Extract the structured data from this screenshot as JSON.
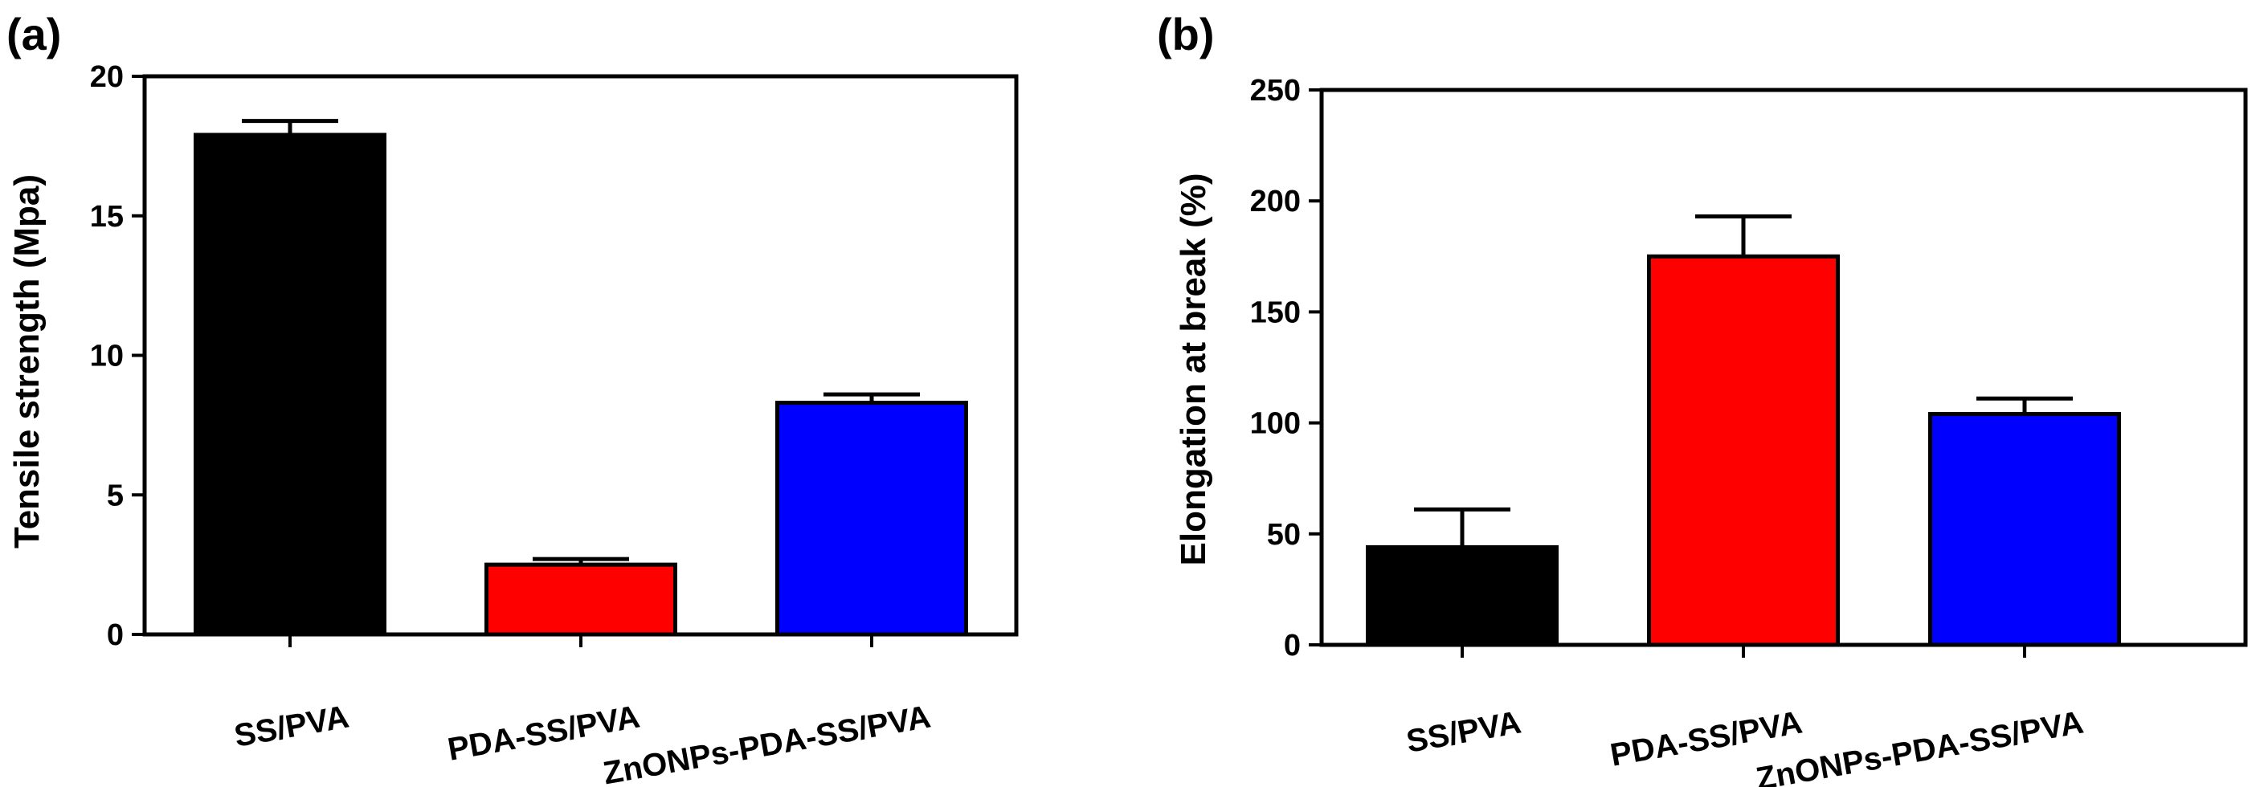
{
  "chart_data": [
    {
      "panel_label": "(a)",
      "type": "bar",
      "categories": [
        "SS/PVA",
        "PDA-SS/PVA",
        "ZnONPs-PDA-SS/PVA"
      ],
      "values": [
        17.9,
        2.5,
        8.3
      ],
      "errors": [
        0.5,
        0.2,
        0.3
      ],
      "colors": [
        "#000000",
        "#ff0000",
        "#0000ff"
      ],
      "ylabel": "Tensile strength (Mpa)",
      "xlabel": "",
      "ylim": [
        0,
        20
      ],
      "yticks": [
        "0",
        "5",
        "10",
        "15",
        "20"
      ],
      "error_bars": "upper"
    },
    {
      "panel_label": "(b)",
      "type": "bar",
      "categories": [
        "SS/PVA",
        "PDA-SS/PVA",
        "ZnONPs-PDA-SS/PVA"
      ],
      "values": [
        44,
        175,
        104
      ],
      "errors": [
        17,
        18,
        7
      ],
      "colors": [
        "#000000",
        "#ff0000",
        "#0000ff"
      ],
      "ylabel": "Elongation at break (%)",
      "xlabel": "",
      "ylim": [
        0,
        250
      ],
      "yticks": [
        "0",
        "50",
        "100",
        "150",
        "200",
        "250"
      ],
      "error_bars": "upper"
    }
  ]
}
